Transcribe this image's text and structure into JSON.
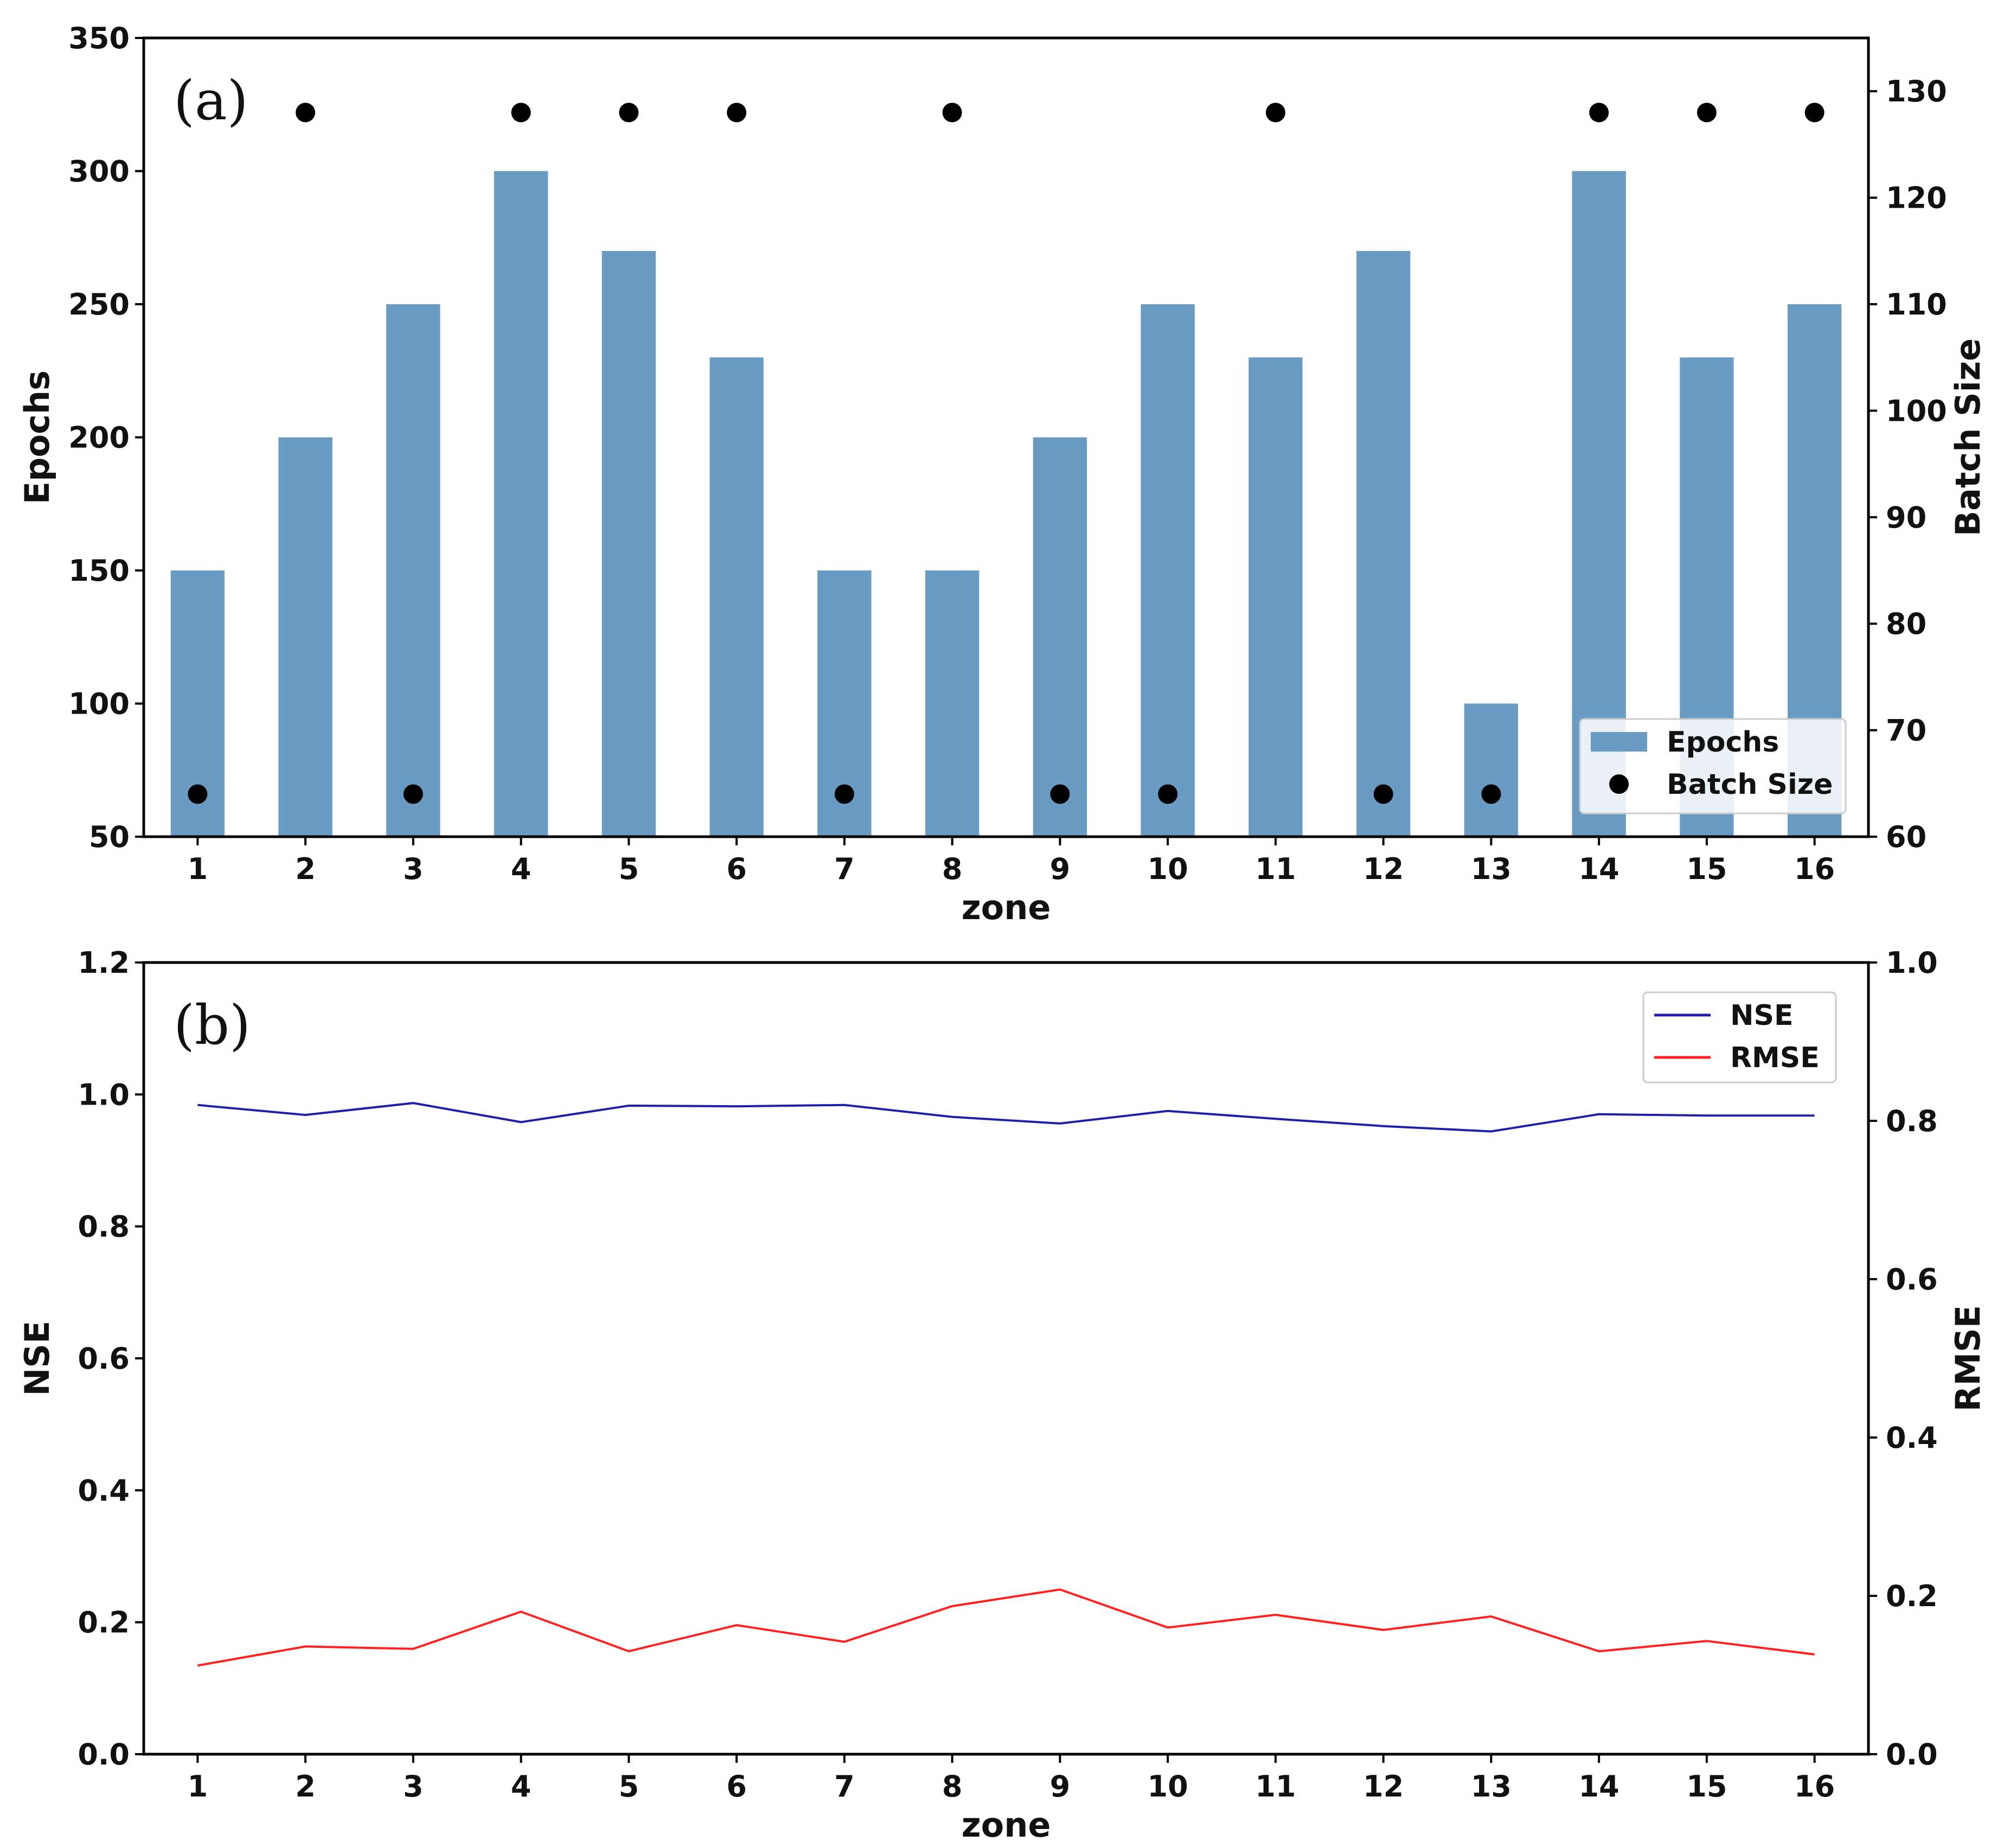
{
  "chart_data": [
    {
      "type": "bar",
      "panel_label": "(a)",
      "categories": [
        "1",
        "2",
        "3",
        "4",
        "5",
        "6",
        "7",
        "8",
        "9",
        "10",
        "11",
        "12",
        "13",
        "14",
        "15",
        "16"
      ],
      "xlabel": "zone",
      "ylabel": "Epochs",
      "ylabel_right": "Batch Size",
      "ylim": [
        50,
        350
      ],
      "ylim_right": [
        60,
        135
      ],
      "yticks": [
        50,
        100,
        150,
        200,
        250,
        300,
        350
      ],
      "yticks_right": [
        60,
        70,
        80,
        90,
        100,
        110,
        120,
        130
      ],
      "legend_position": "lower-right",
      "series": [
        {
          "name": "Epochs",
          "kind": "bar",
          "axis": "left",
          "color": "#6a9bc3",
          "values": [
            150,
            200,
            250,
            300,
            270,
            230,
            150,
            150,
            200,
            250,
            230,
            270,
            100,
            300,
            230,
            250
          ]
        },
        {
          "name": "Batch Size",
          "kind": "scatter",
          "axis": "right",
          "color": "#000000",
          "values": [
            64,
            128,
            64,
            128,
            128,
            128,
            64,
            128,
            64,
            64,
            128,
            64,
            64,
            128,
            128,
            128
          ]
        }
      ]
    },
    {
      "type": "line",
      "panel_label": "(b)",
      "categories": [
        "1",
        "2",
        "3",
        "4",
        "5",
        "6",
        "7",
        "8",
        "9",
        "10",
        "11",
        "12",
        "13",
        "14",
        "15",
        "16"
      ],
      "xlabel": "zone",
      "ylabel": "NSE",
      "ylabel_right": "RMSE",
      "ylim": [
        0.0,
        1.2
      ],
      "ylim_right": [
        0.0,
        1.0
      ],
      "yticks": [
        "0.0",
        "0.2",
        "0.4",
        "0.6",
        "0.8",
        "1.0",
        "1.2"
      ],
      "yticks_right": [
        "0.0",
        "0.2",
        "0.4",
        "0.6",
        "0.8",
        "1.0"
      ],
      "legend_position": "top-right",
      "series": [
        {
          "name": "NSE",
          "axis": "left",
          "color": "#1f1fa8",
          "values": [
            0.984,
            0.969,
            0.987,
            0.958,
            0.983,
            0.982,
            0.984,
            0.966,
            0.956,
            0.975,
            0.963,
            0.952,
            0.944,
            0.97,
            0.968,
            0.968
          ]
        },
        {
          "name": "RMSE",
          "axis": "right",
          "color": "#ff2020",
          "values": [
            0.112,
            0.136,
            0.133,
            0.18,
            0.13,
            0.163,
            0.142,
            0.187,
            0.208,
            0.16,
            0.176,
            0.157,
            0.174,
            0.13,
            0.143,
            0.126
          ]
        }
      ]
    }
  ]
}
